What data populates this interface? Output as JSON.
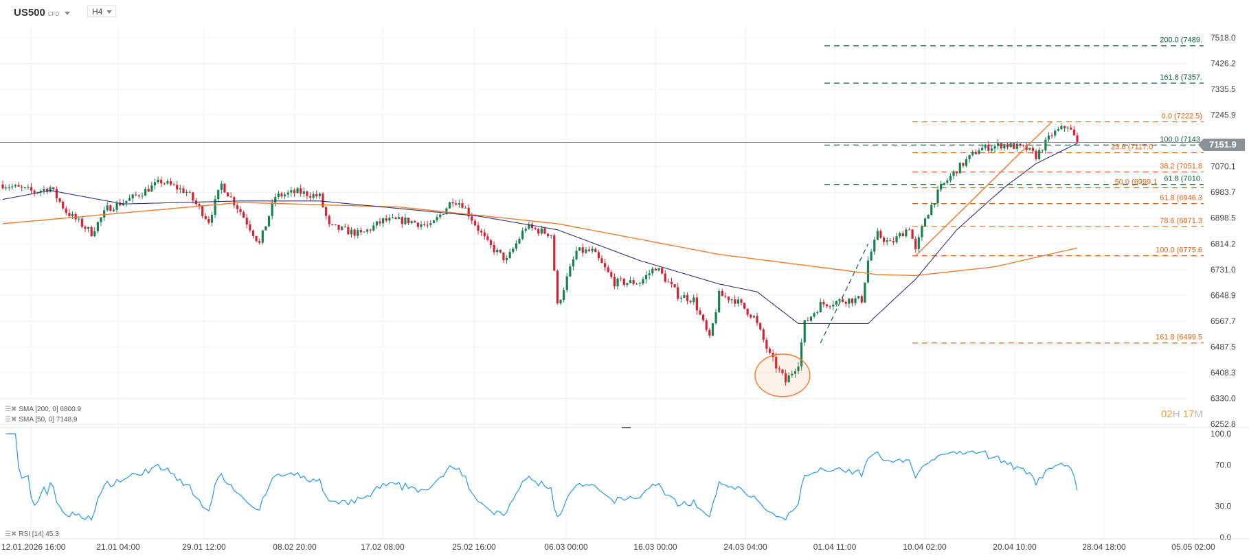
{
  "header": {
    "symbol": "US500",
    "symbol_type": "CFD",
    "timeframe": "H4"
  },
  "indicators": {
    "sma200": "SMA [200, 0] 6800.9",
    "sma50": "SMA [50, 0] 7148.9",
    "rsi": "RSI [14] 45.3"
  },
  "current_price": "7151.9",
  "candle_timer": {
    "hours": "02",
    "h": "H",
    "minutes": "17",
    "m": "M"
  },
  "colors": {
    "up": "#178250",
    "down": "#d52233",
    "sma200": "#f07b2d",
    "sma50": "#2f2f7a",
    "rsi": "#2196f3",
    "fib_orange": "#e8600f",
    "fib_green": "#0d5c3a",
    "grid": "#efefef"
  },
  "chart_data": {
    "type": "candlestick",
    "instrument": "US500",
    "timeframe": "H4",
    "y_scale": "log",
    "grid": true,
    "price_ticks": [
      "7518.0",
      "7426.2",
      "7335.5",
      "7245.9",
      "7070.1",
      "6983.7",
      "6898.5",
      "6814.2",
      "6731.0",
      "6648.9",
      "6567.7",
      "6487.5",
      "6408.3",
      "6330.0",
      "6252.8"
    ],
    "time_ticks": [
      "12.01.2026 16:00",
      "21.01 04:00",
      "29.01 12:00",
      "08.02 20:00",
      "17.02 08:00",
      "25.02 16:00",
      "06.03 00:00",
      "16.03 00:00",
      "24.03 04:00",
      "01.04 11:00",
      "10.04 02:00",
      "20.04 10:00",
      "28.04 18:00",
      "05.05 02:00"
    ],
    "candle_count": 340,
    "close_path": [
      [
        0,
        7010
      ],
      [
        10,
        6985
      ],
      [
        15,
        7000
      ],
      [
        20,
        6920
      ],
      [
        28,
        6850
      ],
      [
        33,
        6930
      ],
      [
        40,
        6960
      ],
      [
        50,
        7020
      ],
      [
        58,
        6985
      ],
      [
        65,
        6890
      ],
      [
        69,
        7010
      ],
      [
        75,
        6920
      ],
      [
        81,
        6814
      ],
      [
        86,
        6970
      ],
      [
        93,
        6985
      ],
      [
        100,
        6970
      ],
      [
        103,
        6870
      ],
      [
        113,
        6845
      ],
      [
        120,
        6890
      ],
      [
        128,
        6890
      ],
      [
        135,
        6870
      ],
      [
        142,
        6960
      ],
      [
        145,
        6945
      ],
      [
        153,
        6814
      ],
      [
        159,
        6760
      ],
      [
        165,
        6870
      ],
      [
        173,
        6845
      ],
      [
        175,
        6615
      ],
      [
        181,
        6790
      ],
      [
        186,
        6790
      ],
      [
        193,
        6690
      ],
      [
        201,
        6690
      ],
      [
        206,
        6740
      ],
      [
        213,
        6650
      ],
      [
        218,
        6635
      ],
      [
        223,
        6510
      ],
      [
        226,
        6650
      ],
      [
        231,
        6635
      ],
      [
        237,
        6580
      ],
      [
        242,
        6460
      ],
      [
        247,
        6380
      ],
      [
        251,
        6440
      ],
      [
        253,
        6560
      ],
      [
        258,
        6620
      ],
      [
        266,
        6635
      ],
      [
        271,
        6635
      ],
      [
        273,
        6760
      ],
      [
        276,
        6845
      ],
      [
        280,
        6814
      ],
      [
        286,
        6870
      ],
      [
        288,
        6790
      ],
      [
        291,
        6900
      ],
      [
        296,
        7000
      ],
      [
        301,
        7060
      ],
      [
        308,
        7130
      ],
      [
        316,
        7145
      ],
      [
        323,
        7130
      ],
      [
        326,
        7105
      ],
      [
        331,
        7180
      ],
      [
        336,
        7210
      ],
      [
        339,
        7151.9
      ]
    ],
    "sma200_path": [
      [
        0,
        6880
      ],
      [
        75,
        6950
      ],
      [
        125,
        6935
      ],
      [
        175,
        6880
      ],
      [
        226,
        6780
      ],
      [
        276,
        6715
      ],
      [
        288,
        6712
      ],
      [
        313,
        6740
      ],
      [
        339,
        6800.9
      ]
    ],
    "sma50_path": [
      [
        0,
        6960
      ],
      [
        15,
        6990
      ],
      [
        38,
        6945
      ],
      [
        75,
        6955
      ],
      [
        100,
        6955
      ],
      [
        150,
        6905
      ],
      [
        175,
        6860
      ],
      [
        201,
        6760
      ],
      [
        226,
        6685
      ],
      [
        238,
        6660
      ],
      [
        251,
        6560
      ],
      [
        273,
        6560
      ],
      [
        288,
        6700
      ],
      [
        301,
        6860
      ],
      [
        316,
        7000
      ],
      [
        326,
        7080
      ],
      [
        339,
        7148.9
      ]
    ],
    "rsi": {
      "last": 45.3,
      "ticks": [
        "100.0",
        "70.0",
        "30.0",
        "0.0"
      ]
    },
    "fib_orange": {
      "levels": [
        {
          "label": "0.0 (7222.5)",
          "price": 7222.5
        },
        {
          "label": "23.6 (7117.0",
          "price": 7117.0
        },
        {
          "label": "38.2 (7051.8",
          "price": 7051.8
        },
        {
          "label": "50.0 (6999.1",
          "price": 6999.1
        },
        {
          "label": "61.8 (6946.3",
          "price": 6946.3
        },
        {
          "label": "78.6 (6871.3",
          "price": 6871.3
        },
        {
          "label": "100.0 (6775.6",
          "price": 6775.6
        },
        {
          "label": "161.8 (6499.5",
          "price": 6499.5
        }
      ]
    },
    "fib_green": {
      "levels": [
        {
          "label": "200.0 (7489.",
          "price": 7489.2
        },
        {
          "label": "161.8 (7357.",
          "price": 7357.0
        },
        {
          "label": "100.0 (7143.",
          "price": 7143.0
        },
        {
          "label": "61.8 (7010.",
          "price": 7010.0
        }
      ]
    },
    "trendline_orange": [
      [
        288,
        6775.6
      ],
      [
        331,
        7222.5
      ]
    ],
    "trendline_green_dashed": [
      [
        258,
        6499.5
      ],
      [
        273,
        6814
      ]
    ],
    "highlight_ellipse_center": [
      246,
      6400
    ]
  }
}
